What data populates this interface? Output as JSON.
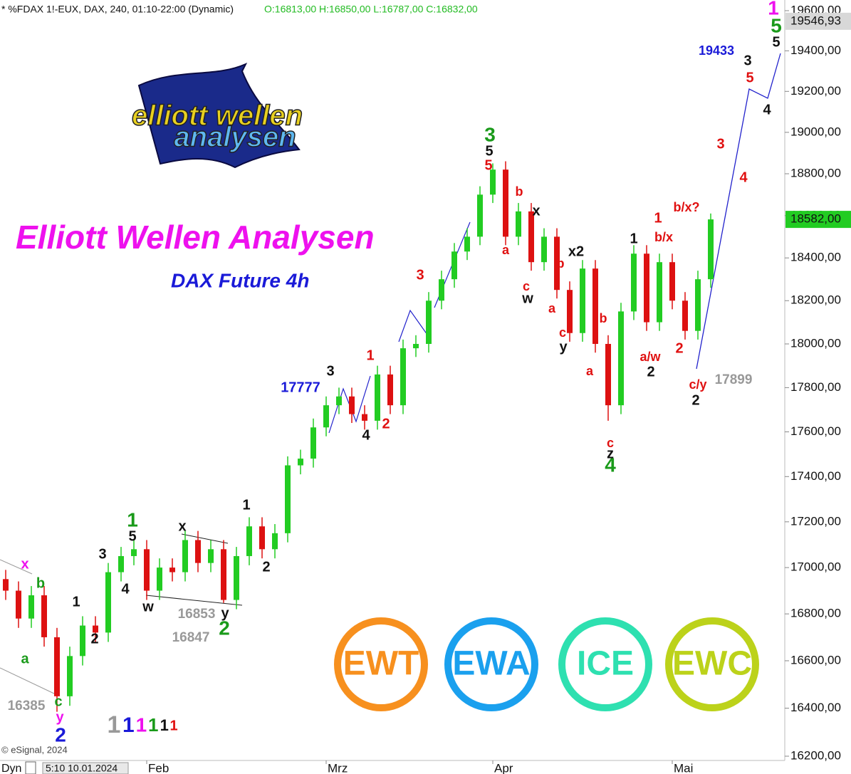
{
  "chart_data": {
    "type": "candlestick",
    "header": "* %FDAX 1!-EUX, DAX, 240, 01:10-22:00 (Dynamic)",
    "ohlc_text": "O:16813,00 H:16850,00 L:16787,00 C:16832,00",
    "title": "Elliott Wellen Analysen",
    "subtitle": "DAX Future 4h",
    "log_scale": true,
    "up_color": "#22cc22",
    "down_color": "#dd1111",
    "ylim": [
      16200,
      19600
    ],
    "yticks": [
      {
        "value": 16200,
        "label": "16200,00"
      },
      {
        "value": 16400,
        "label": "16400,00"
      },
      {
        "value": 16600,
        "label": "16600,00"
      },
      {
        "value": 16800,
        "label": "16800,00"
      },
      {
        "value": 17000,
        "label": "17000,00"
      },
      {
        "value": 17200,
        "label": "17200,00"
      },
      {
        "value": 17400,
        "label": "17400,00"
      },
      {
        "value": 17600,
        "label": "17600,00"
      },
      {
        "value": 17800,
        "label": "17800,00"
      },
      {
        "value": 18000,
        "label": "18000,00"
      },
      {
        "value": 18200,
        "label": "18200,00"
      },
      {
        "value": 18400,
        "label": "18400,00"
      },
      {
        "value": 18600,
        "label": "18600,00"
      },
      {
        "value": 18800,
        "label": "18800,00"
      },
      {
        "value": 19000,
        "label": "19000,00"
      },
      {
        "value": 19200,
        "label": "19200,00"
      },
      {
        "value": 19400,
        "label": "19400,00"
      },
      {
        "value": 19600,
        "label": "19600,00"
      }
    ],
    "categories": [
      null,
      null,
      null,
      null,
      null,
      null,
      null,
      null,
      null,
      null,
      null,
      "Feb",
      null,
      null,
      null,
      null,
      null,
      null,
      null,
      null,
      null,
      null,
      null,
      null,
      null,
      "Mrz",
      null,
      null,
      null,
      null,
      null,
      null,
      null,
      null,
      null,
      null,
      null,
      null,
      "Apr",
      null,
      null,
      null,
      null,
      null,
      null,
      null,
      null,
      null,
      null,
      null,
      null,
      null,
      "Mai",
      null,
      null,
      null
    ],
    "open": [
      16950,
      16900,
      16780,
      16880,
      16700,
      16450,
      16620,
      16750,
      16720,
      16980,
      17050,
      17080,
      16900,
      17000,
      16980,
      17120,
      17020,
      17080,
      16860,
      17050,
      17180,
      17080,
      17150,
      17450,
      17480,
      17620,
      17720,
      17760,
      17680,
      17650,
      17860,
      17720,
      17980,
      18000,
      18200,
      18300,
      18430,
      18500,
      18700,
      18820,
      18500,
      18620,
      18380,
      18500,
      18250,
      18050,
      18350,
      18000,
      17720,
      18150,
      18420,
      18100,
      18380,
      18200,
      18060,
      18300
    ],
    "high": [
      16990,
      16940,
      16920,
      16920,
      16740,
      16660,
      16790,
      16790,
      17020,
      17090,
      17120,
      17120,
      17040,
      17040,
      17160,
      17160,
      17120,
      17120,
      17090,
      17220,
      17220,
      17190,
      17490,
      17520,
      17660,
      17760,
      17800,
      17800,
      17720,
      17900,
      17900,
      18020,
      18040,
      18240,
      18340,
      18470,
      18540,
      18740,
      18850,
      18860,
      18660,
      18660,
      18540,
      18540,
      18290,
      18390,
      18390,
      18040,
      18190,
      18460,
      18460,
      18420,
      18420,
      18240,
      18340,
      18610
    ],
    "low": [
      16860,
      16740,
      16740,
      16660,
      16385,
      16410,
      16580,
      16680,
      16680,
      16940,
      17010,
      16860,
      16860,
      16940,
      16940,
      16980,
      16980,
      16847,
      16820,
      17010,
      17040,
      17040,
      17110,
      17410,
      17440,
      17580,
      17680,
      17640,
      17610,
      17610,
      17680,
      17680,
      17940,
      17960,
      18160,
      18260,
      18390,
      18460,
      18660,
      18460,
      18460,
      18340,
      18340,
      18210,
      18010,
      18010,
      17960,
      17650,
      17680,
      18110,
      18060,
      18060,
      18160,
      18020,
      18020,
      18260
    ],
    "close": [
      16900,
      16780,
      16880,
      16700,
      16450,
      16620,
      16750,
      16720,
      16980,
      17050,
      17080,
      16900,
      17000,
      16980,
      17120,
      17020,
      17080,
      16860,
      17050,
      17180,
      17080,
      17150,
      17450,
      17480,
      17620,
      17720,
      17760,
      17680,
      17650,
      17860,
      17720,
      17980,
      18000,
      18200,
      18300,
      18430,
      18500,
      18700,
      18820,
      18500,
      18620,
      18380,
      18500,
      18250,
      18050,
      18350,
      18000,
      17720,
      18150,
      18420,
      18100,
      18380,
      18200,
      18060,
      18300,
      18582
    ],
    "price_markers": [
      {
        "value": 19546.93,
        "label": "19546,93"
      },
      {
        "value": 18582,
        "label": "18582,00"
      }
    ],
    "annotations": [
      "x",
      "b",
      "a",
      "c",
      "y",
      "2",
      "16385",
      "1",
      "2",
      "3",
      "4",
      "5",
      "1",
      "w",
      "x",
      "y",
      "2",
      "16853",
      "16847",
      "1",
      "2",
      "17777",
      "3",
      "4",
      "1",
      "2",
      "3",
      "3",
      "5",
      "5",
      "b",
      "a",
      "x",
      "c",
      "w",
      "x2",
      "b",
      "a",
      "c",
      "y",
      "b",
      "a",
      "c",
      "z",
      "4",
      "1",
      "b/x",
      "1",
      "b/x?",
      "a/w",
      "2",
      "2",
      "c/y",
      "2",
      "17899",
      "3",
      "4",
      "19433",
      "3",
      "5",
      "4",
      "1",
      "5",
      "5"
    ],
    "degree_legend": [
      "1",
      "1",
      "1",
      "1",
      "1",
      "1"
    ],
    "logo": {
      "line1": "elliott wellen",
      "line2": "analysen"
    },
    "badges": [
      "EWT",
      "EWA",
      "ICE",
      "EWC"
    ],
    "copyright": "© eSignal, 2024",
    "session": "Dyn",
    "start_date": "5:10 10.01.2024"
  }
}
